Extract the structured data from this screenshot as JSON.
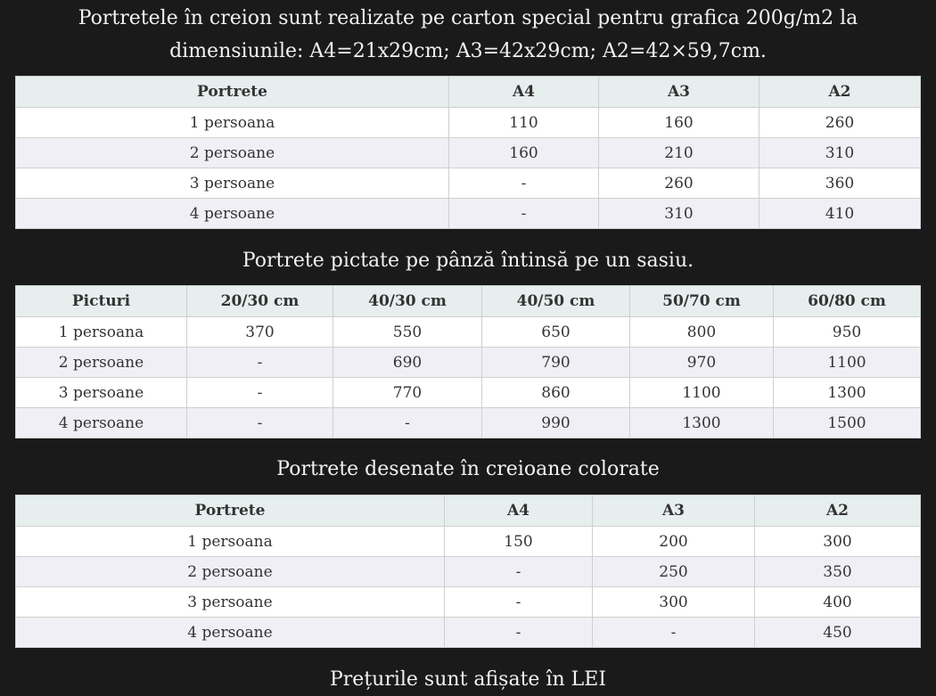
{
  "title1_line1": "Portretele în creion sunt realizate pe carton special pentru grafica 200g/m2 la",
  "title1_line2": "dimensiunile: A4=21x29cm; A3=42x29cm; A2=42×59,7cm.",
  "table1": {
    "headers": [
      "Portrete",
      "A4",
      "A3",
      "A2"
    ],
    "rows": [
      [
        "1 persoana",
        "110",
        "160",
        "260"
      ],
      [
        "2 persoane",
        "160",
        "210",
        "310"
      ],
      [
        "3 persoane",
        "-",
        "260",
        "360"
      ],
      [
        "4 persoane",
        "-",
        "310",
        "410"
      ]
    ]
  },
  "title2": "Portrete  pictate pe pânză întinsă pe un sasiu.",
  "table2": {
    "headers": [
      "Picturi",
      "20/30 cm",
      "40/30 cm",
      "40/50 cm",
      "50/70 cm",
      "60/80 cm"
    ],
    "rows": [
      [
        "1 persoana",
        "370",
        "550",
        "650",
        "800",
        "950"
      ],
      [
        "2 persoane",
        "-",
        "690",
        "790",
        "970",
        "1100"
      ],
      [
        "3 persoane",
        "-",
        "770",
        "860",
        "1100",
        "1300"
      ],
      [
        "4 persoane",
        "-",
        "-",
        "990",
        "1300",
        "1500"
      ]
    ]
  },
  "title3": "Portrete desenate în creioane colorate",
  "table3": {
    "headers": [
      "Portrete",
      "A4",
      "A3",
      "A2"
    ],
    "rows": [
      [
        "1 persoana",
        "150",
        "200",
        "300"
      ],
      [
        "2 persoane",
        "-",
        "250",
        "350"
      ],
      [
        "3 persoane",
        "-",
        "300",
        "400"
      ],
      [
        "4 persoane",
        "-",
        "-",
        "450"
      ]
    ]
  },
  "footer": "Prețurile sunt afișate în LEI"
}
